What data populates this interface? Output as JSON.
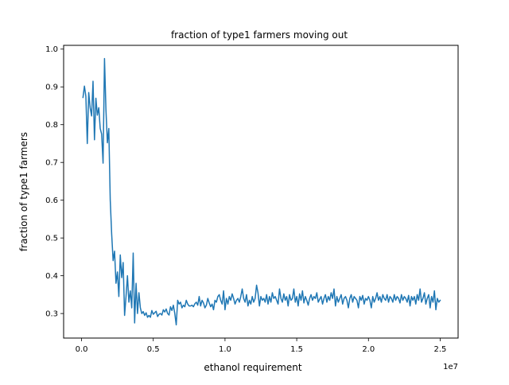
{
  "chart_data": {
    "type": "line",
    "title": "fraction of type1 farmers moving out",
    "xlabel": "ethanol requirement",
    "ylabel": "fraction of type1 farmers",
    "x_offset_label": "1e7",
    "xlim": [
      -1250000,
      26250000
    ],
    "ylim": [
      0.235,
      1.01
    ],
    "xticks": [
      0,
      5000000,
      10000000,
      15000000,
      20000000,
      25000000
    ],
    "xtick_labels": [
      "0.0",
      "0.5",
      "1.0",
      "1.5",
      "2.0",
      "2.5"
    ],
    "yticks": [
      0.3,
      0.4,
      0.5,
      0.6,
      0.7,
      0.8,
      0.9,
      1.0
    ],
    "ytick_labels": [
      "0.3",
      "0.4",
      "0.5",
      "0.6",
      "0.7",
      "0.8",
      "0.9",
      "1.0"
    ],
    "grid": false,
    "legend": "none",
    "series": [
      {
        "color": "#1f77b4",
        "x": [
          100000,
          200000,
          300000,
          400000,
          500000,
          600000,
          700000,
          800000,
          900000,
          1000000,
          1100000,
          1200000,
          1300000,
          1400000,
          1500000,
          1600000,
          1700000,
          1800000,
          1900000,
          2000000,
          2100000,
          2200000,
          2300000,
          2400000,
          2500000,
          2600000,
          2700000,
          2800000,
          2900000,
          3000000,
          3100000,
          3200000,
          3300000,
          3400000,
          3500000,
          3600000,
          3700000,
          3800000,
          3900000,
          4000000,
          4100000,
          4200000,
          4300000,
          4400000,
          4500000,
          4600000,
          4700000,
          4800000,
          4900000,
          5000000,
          5100000,
          5200000,
          5300000,
          5400000,
          5500000,
          5600000,
          5700000,
          5800000,
          5900000,
          6000000,
          6100000,
          6200000,
          6300000,
          6400000,
          6500000,
          6600000,
          6700000,
          6800000,
          6900000,
          7000000,
          7100000,
          7200000,
          7300000,
          7400000,
          7500000,
          7600000,
          7700000,
          7800000,
          7900000,
          8000000,
          8100000,
          8200000,
          8300000,
          8400000,
          8500000,
          8600000,
          8700000,
          8800000,
          8900000,
          9000000,
          9100000,
          9200000,
          9300000,
          9400000,
          9500000,
          9600000,
          9700000,
          9800000,
          9900000,
          10000000,
          10100000,
          10200000,
          10300000,
          10400000,
          10500000,
          10600000,
          10700000,
          10800000,
          10900000,
          11000000,
          11100000,
          11200000,
          11300000,
          11400000,
          11500000,
          11600000,
          11700000,
          11800000,
          11900000,
          12000000,
          12100000,
          12200000,
          12300000,
          12400000,
          12500000,
          12600000,
          12700000,
          12800000,
          12900000,
          13000000,
          13100000,
          13200000,
          13300000,
          13400000,
          13500000,
          13600000,
          13700000,
          13800000,
          13900000,
          14000000,
          14100000,
          14200000,
          14300000,
          14400000,
          14500000,
          14600000,
          14700000,
          14800000,
          14900000,
          15000000,
          15100000,
          15200000,
          15300000,
          15400000,
          15500000,
          15600000,
          15700000,
          15800000,
          15900000,
          16000000,
          16100000,
          16200000,
          16300000,
          16400000,
          16500000,
          16600000,
          16700000,
          16800000,
          16900000,
          17000000,
          17100000,
          17200000,
          17300000,
          17400000,
          17500000,
          17600000,
          17700000,
          17800000,
          17900000,
          18000000,
          18100000,
          18200000,
          18300000,
          18400000,
          18500000,
          18600000,
          18700000,
          18800000,
          18900000,
          19000000,
          19100000,
          19200000,
          19300000,
          19400000,
          19500000,
          19600000,
          19700000,
          19800000,
          19900000,
          20000000,
          20100000,
          20200000,
          20300000,
          20400000,
          20500000,
          20600000,
          20700000,
          20800000,
          20900000,
          21000000,
          21100000,
          21200000,
          21300000,
          21400000,
          21500000,
          21600000,
          21700000,
          21800000,
          21900000,
          22000000,
          22100000,
          22200000,
          22300000,
          22400000,
          22500000,
          22600000,
          22700000,
          22800000,
          22900000,
          23000000,
          23100000,
          23200000,
          23300000,
          23400000,
          23500000,
          23600000,
          23700000,
          23800000,
          23900000,
          24000000,
          24100000,
          24200000,
          24300000,
          24400000,
          24500000,
          24600000,
          24700000,
          24800000,
          24900000,
          25000000
        ],
        "y": [
          0.872,
          0.902,
          0.875,
          0.75,
          0.885,
          0.845,
          0.823,
          0.915,
          0.76,
          0.87,
          0.825,
          0.845,
          0.79,
          0.775,
          0.698,
          0.975,
          0.84,
          0.752,
          0.79,
          0.6,
          0.51,
          0.44,
          0.465,
          0.38,
          0.41,
          0.345,
          0.455,
          0.395,
          0.435,
          0.295,
          0.345,
          0.4,
          0.33,
          0.36,
          0.315,
          0.46,
          0.275,
          0.38,
          0.3,
          0.355,
          0.315,
          0.3,
          0.305,
          0.295,
          0.302,
          0.29,
          0.295,
          0.29,
          0.308,
          0.298,
          0.302,
          0.306,
          0.292,
          0.298,
          0.3,
          0.296,
          0.31,
          0.304,
          0.312,
          0.3,
          0.296,
          0.318,
          0.308,
          0.322,
          0.3,
          0.27,
          0.335,
          0.325,
          0.33,
          0.315,
          0.322,
          0.318,
          0.335,
          0.325,
          0.32,
          0.32,
          0.322,
          0.318,
          0.326,
          0.33,
          0.322,
          0.345,
          0.32,
          0.335,
          0.328,
          0.315,
          0.322,
          0.34,
          0.328,
          0.318,
          0.325,
          0.31,
          0.335,
          0.33,
          0.345,
          0.35,
          0.335,
          0.325,
          0.36,
          0.31,
          0.34,
          0.325,
          0.345,
          0.335,
          0.352,
          0.34,
          0.325,
          0.335,
          0.34,
          0.33,
          0.345,
          0.365,
          0.34,
          0.33,
          0.35,
          0.32,
          0.335,
          0.325,
          0.345,
          0.33,
          0.34,
          0.375,
          0.355,
          0.32,
          0.345,
          0.335,
          0.34,
          0.33,
          0.35,
          0.325,
          0.345,
          0.33,
          0.355,
          0.34,
          0.345,
          0.335,
          0.325,
          0.365,
          0.34,
          0.33,
          0.352,
          0.335,
          0.345,
          0.32,
          0.35,
          0.335,
          0.34,
          0.365,
          0.33,
          0.345,
          0.32,
          0.352,
          0.335,
          0.36,
          0.328,
          0.345,
          0.335,
          0.322,
          0.34,
          0.35,
          0.335,
          0.345,
          0.34,
          0.355,
          0.33,
          0.338,
          0.345,
          0.325,
          0.34,
          0.35,
          0.33,
          0.345,
          0.335,
          0.355,
          0.34,
          0.365,
          0.32,
          0.345,
          0.33,
          0.34,
          0.35,
          0.325,
          0.34,
          0.345,
          0.335,
          0.315,
          0.34,
          0.35,
          0.33,
          0.345,
          0.34,
          0.335,
          0.315,
          0.345,
          0.335,
          0.348,
          0.325,
          0.34,
          0.335,
          0.345,
          0.335,
          0.315,
          0.345,
          0.33,
          0.34,
          0.355,
          0.335,
          0.345,
          0.33,
          0.35,
          0.34,
          0.335,
          0.35,
          0.33,
          0.345,
          0.34,
          0.33,
          0.35,
          0.335,
          0.345,
          0.34,
          0.328,
          0.35,
          0.335,
          0.345,
          0.34,
          0.33,
          0.348,
          0.32,
          0.345,
          0.335,
          0.345,
          0.325,
          0.35,
          0.335,
          0.365,
          0.33,
          0.34,
          0.355,
          0.325,
          0.34,
          0.35,
          0.315,
          0.345,
          0.33,
          0.36,
          0.31,
          0.34,
          0.33,
          0.335
        ]
      }
    ]
  }
}
